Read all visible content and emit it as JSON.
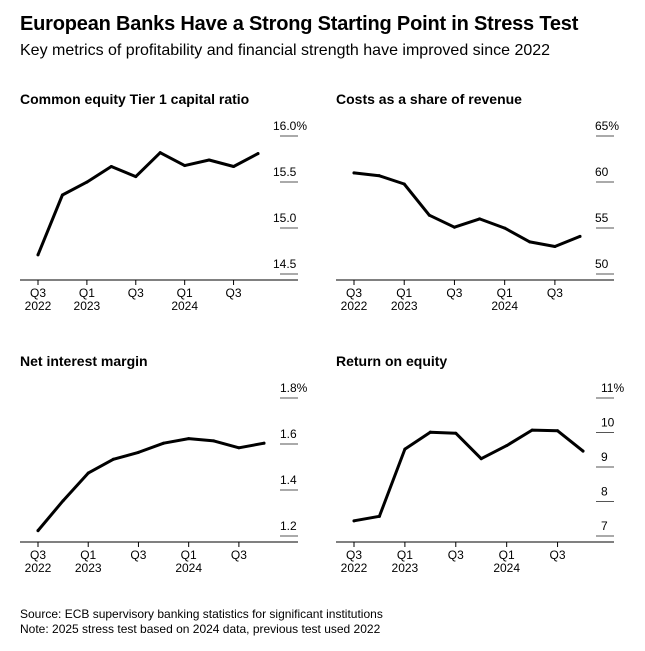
{
  "header": {
    "title": "European Banks Have a Strong Starting Point in Stress Test",
    "subtitle": "Key metrics of profitability and financial strength have improved since 2022"
  },
  "footer": {
    "source": "Source: ECB supervisory banking statistics for significant institutions",
    "note": "Note: 2025 stress test based on 2024 data, previous test used 2022"
  },
  "chart_data": [
    {
      "type": "line",
      "title": "Common equity Tier 1 capital ratio",
      "x": [
        "Q3 2022",
        "Q4 2022",
        "Q1 2023",
        "Q2 2023",
        "Q3 2023",
        "Q4 2023",
        "Q1 2024",
        "Q2 2024",
        "Q3 2024",
        "Q4 2024"
      ],
      "values": [
        14.6,
        15.25,
        15.39,
        15.56,
        15.45,
        15.71,
        15.57,
        15.63,
        15.56,
        15.7
      ],
      "ylim": [
        14.5,
        16.0
      ],
      "y_ticks": [
        14.5,
        15.0,
        15.5,
        16.0
      ],
      "y_tick_labels": [
        "14.5",
        "15.0",
        "15.5",
        "16.0%"
      ],
      "x_tick_labels": [
        {
          "i": 0,
          "top": "Q3",
          "bottom": "2022"
        },
        {
          "i": 2,
          "top": "Q1",
          "bottom": "2023"
        },
        {
          "i": 4,
          "top": "Q3",
          "bottom": ""
        },
        {
          "i": 6,
          "top": "Q1",
          "bottom": "2024"
        },
        {
          "i": 8,
          "top": "Q3",
          "bottom": ""
        }
      ]
    },
    {
      "type": "line",
      "title": "Costs as a share of revenue",
      "x": [
        "Q3 2022",
        "Q4 2022",
        "Q1 2023",
        "Q2 2023",
        "Q3 2023",
        "Q4 2023",
        "Q1 2024",
        "Q2 2024",
        "Q3 2024",
        "Q4 2024"
      ],
      "values": [
        59.9,
        59.6,
        58.7,
        55.3,
        54.0,
        54.9,
        53.9,
        52.4,
        51.9,
        53.0
      ],
      "ylim": [
        50,
        65
      ],
      "y_ticks": [
        50,
        55,
        60,
        65
      ],
      "y_tick_labels": [
        "50",
        "55",
        "60",
        "65%"
      ],
      "x_tick_labels": [
        {
          "i": 0,
          "top": "Q3",
          "bottom": "2022"
        },
        {
          "i": 2,
          "top": "Q1",
          "bottom": "2023"
        },
        {
          "i": 4,
          "top": "Q3",
          "bottom": ""
        },
        {
          "i": 6,
          "top": "Q1",
          "bottom": "2024"
        },
        {
          "i": 8,
          "top": "Q3",
          "bottom": ""
        }
      ]
    },
    {
      "type": "line",
      "title": "Net interest margin",
      "x": [
        "Q3 2022",
        "Q4 2022",
        "Q1 2023",
        "Q2 2023",
        "Q3 2023",
        "Q4 2023",
        "Q1 2024",
        "Q2 2024",
        "Q3 2024",
        "Q4 2024"
      ],
      "values": [
        1.18,
        1.31,
        1.43,
        1.49,
        1.52,
        1.56,
        1.58,
        1.57,
        1.54,
        1.56
      ],
      "ylim": [
        1.2,
        1.8
      ],
      "y_ticks": [
        1.2,
        1.4,
        1.6,
        1.8
      ],
      "y_tick_labels": [
        "1.2",
        "1.4",
        "1.6",
        "1.8%"
      ],
      "x_tick_labels": [
        {
          "i": 0,
          "top": "Q3",
          "bottom": "2022"
        },
        {
          "i": 2,
          "top": "Q1",
          "bottom": "2023"
        },
        {
          "i": 4,
          "top": "Q3",
          "bottom": ""
        },
        {
          "i": 6,
          "top": "Q1",
          "bottom": "2024"
        },
        {
          "i": 8,
          "top": "Q3",
          "bottom": ""
        }
      ]
    },
    {
      "type": "line",
      "title": "Return on equity",
      "x": [
        "Q3 2022",
        "Q4 2022",
        "Q1 2023",
        "Q2 2023",
        "Q3 2023",
        "Q4 2023",
        "Q1 2024",
        "Q2 2024",
        "Q3 2024",
        "Q4 2024"
      ],
      "values": [
        7.15,
        7.28,
        9.23,
        9.72,
        9.69,
        8.95,
        9.33,
        9.78,
        9.76,
        9.17
      ],
      "ylim": [
        7,
        11
      ],
      "y_ticks": [
        7,
        8,
        9,
        10,
        11
      ],
      "y_tick_labels": [
        "7",
        "8",
        "9",
        "10",
        "11%"
      ],
      "x_tick_labels": [
        {
          "i": 0,
          "top": "Q3",
          "bottom": "2022"
        },
        {
          "i": 2,
          "top": "Q1",
          "bottom": "2023"
        },
        {
          "i": 4,
          "top": "Q3",
          "bottom": ""
        },
        {
          "i": 6,
          "top": "Q1",
          "bottom": "2024"
        },
        {
          "i": 8,
          "top": "Q3",
          "bottom": ""
        }
      ]
    }
  ]
}
